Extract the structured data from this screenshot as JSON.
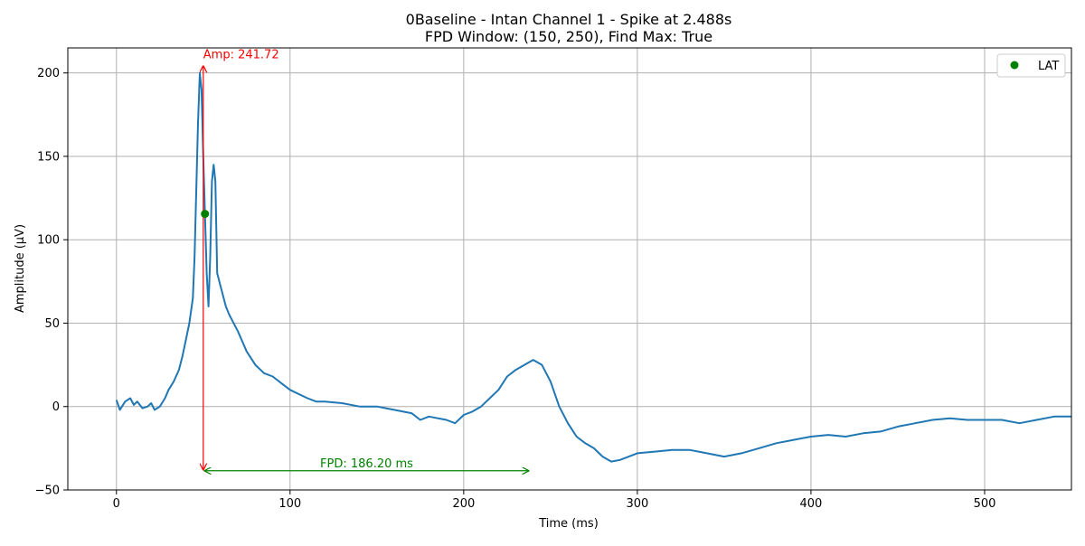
{
  "chart_data": {
    "type": "line",
    "title_line1": "0Baseline - Intan Channel 1 - Spike at 2.488s",
    "title_line2": "FPD Window: (150, 250), Find Max: True",
    "xlabel": "Time (ms)",
    "ylabel": "Amplitude (μV)",
    "xlim": [
      -28,
      550
    ],
    "ylim": [
      -50,
      215
    ],
    "x_ticks": [
      0,
      100,
      200,
      300,
      400,
      500
    ],
    "y_ticks": [
      -50,
      0,
      50,
      100,
      150,
      200
    ],
    "grid": true,
    "legend_position": "top-right",
    "legend": {
      "label": "LAT"
    },
    "colors": {
      "signal": "#1f77b4",
      "lat": "#008000",
      "amp": "#ff0000",
      "fpd": "#008000",
      "grid": "#b0b0b0"
    },
    "series": [
      {
        "x": [
          0,
          2,
          5,
          8,
          10,
          12,
          15,
          18,
          20,
          22,
          25,
          28,
          30,
          33,
          36,
          38,
          40,
          42,
          44,
          45,
          46,
          47,
          48,
          49,
          50,
          51,
          52,
          53,
          54,
          55,
          56,
          57,
          58,
          60,
          63,
          65,
          70,
          75,
          80,
          85,
          90,
          95,
          100,
          110,
          115,
          120,
          130,
          140,
          150,
          160,
          170,
          175,
          180,
          190,
          195,
          200,
          205,
          210,
          215,
          220,
          225,
          230,
          235,
          240,
          245,
          250,
          255,
          260,
          265,
          270,
          275,
          280,
          285,
          290,
          300,
          310,
          320,
          330,
          340,
          350,
          360,
          370,
          380,
          390,
          400,
          410,
          420,
          430,
          440,
          450,
          460,
          470,
          480,
          490,
          500,
          510,
          520,
          530,
          540,
          550
        ],
        "y": [
          4,
          -2,
          3,
          5,
          1,
          3,
          -1,
          0,
          2,
          -2,
          0,
          5,
          10,
          15,
          22,
          30,
          40,
          50,
          65,
          90,
          130,
          170,
          200,
          190,
          150,
          115,
          80,
          60,
          90,
          135,
          145,
          135,
          80,
          72,
          60,
          55,
          45,
          33,
          25,
          20,
          18,
          14,
          10,
          5,
          3,
          3,
          2,
          0,
          0,
          -2,
          -4,
          -8,
          -6,
          -8,
          -10,
          -5,
          -3,
          0,
          5,
          10,
          18,
          22,
          25,
          28,
          25,
          15,
          0,
          -10,
          -18,
          -22,
          -25,
          -30,
          -33,
          -32,
          -28,
          -27,
          -26,
          -26,
          -28,
          -30,
          -28,
          -25,
          -22,
          -20,
          -18,
          -17,
          -18,
          -16,
          -15,
          -12,
          -10,
          -8,
          -7,
          -8,
          -8,
          -8,
          -10,
          -8,
          -6,
          -6
        ]
      }
    ],
    "lat_point": {
      "x": 51,
      "y": 115.5
    },
    "amplitude_annotation": {
      "label": "Amp: 241.72",
      "x": 50,
      "y_top": 204,
      "y_bottom": -37.7
    },
    "fpd_annotation": {
      "label": "FPD: 186.20 ms",
      "x_start": 51,
      "x_end": 237.2,
      "y": -38.5
    }
  }
}
